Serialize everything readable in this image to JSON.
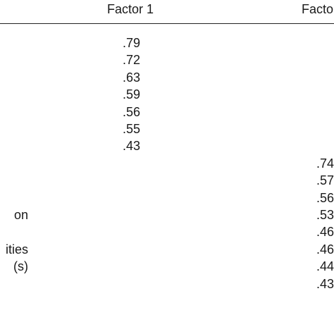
{
  "table": {
    "headers": [
      "Factor 1",
      "Facto"
    ],
    "rows": [
      {
        "label": "",
        "factor1": ".79",
        "factor2": ""
      },
      {
        "label": "",
        "factor1": ".72",
        "factor2": ""
      },
      {
        "label": "",
        "factor1": ".63",
        "factor2": ""
      },
      {
        "label": "",
        "factor1": ".59",
        "factor2": ""
      },
      {
        "label": "",
        "factor1": ".56",
        "factor2": ""
      },
      {
        "label": "",
        "factor1": ".55",
        "factor2": ""
      },
      {
        "label": "",
        "factor1": ".43",
        "factor2": ""
      },
      {
        "label": "",
        "factor1": "",
        "factor2": ".74"
      },
      {
        "label": "",
        "factor1": "",
        "factor2": ".57"
      },
      {
        "label": "",
        "factor1": "",
        "factor2": ".56"
      },
      {
        "label": "on",
        "factor1": "",
        "factor2": ".53"
      },
      {
        "label": "",
        "factor1": "",
        "factor2": ".46"
      },
      {
        "label": "ities",
        "factor1": "",
        "factor2": ".46"
      },
      {
        "label": "(s)",
        "factor1": "",
        "factor2": ".44"
      },
      {
        "label": "",
        "factor1": "",
        "factor2": ".43"
      }
    ]
  }
}
